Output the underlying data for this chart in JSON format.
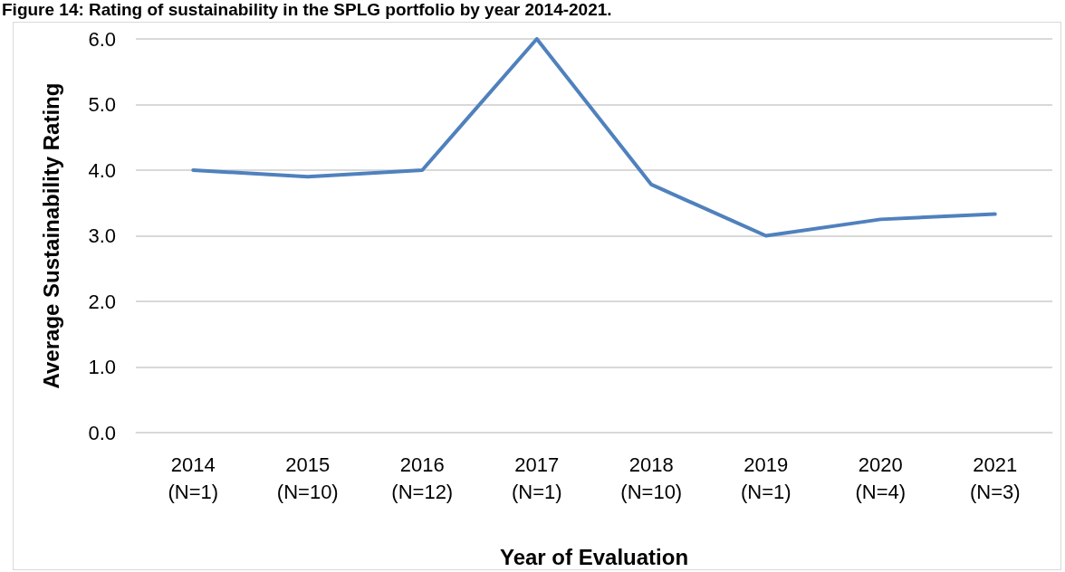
{
  "chart_data": {
    "type": "line",
    "title": "Figure 14: Rating of sustainability in the SPLG portfolio by year 2014-2021.",
    "xlabel": "Year of Evaluation",
    "ylabel": "Average Sustainability Rating",
    "categories": [
      "2014\n(N=1)",
      "2015\n(N=10)",
      "2016\n(N=12)",
      "2017\n(N=1)",
      "2018\n(N=10)",
      "2019\n(N=1)",
      "2020\n(N=4)",
      "2021\n(N=3)"
    ],
    "series": [
      {
        "color": "#4f81bd",
        "values": [
          4.0,
          3.9,
          4.0,
          6.0,
          3.78,
          3.0,
          3.25,
          3.33
        ]
      }
    ],
    "ylim": [
      0,
      6
    ],
    "yticks": [
      {
        "value": 0,
        "label": "0.0"
      },
      {
        "value": 1,
        "label": "1.0"
      },
      {
        "value": 2,
        "label": "2.0"
      },
      {
        "value": 3,
        "label": "3.0"
      },
      {
        "value": 4,
        "label": "4.0"
      },
      {
        "value": 5,
        "label": "5.0"
      },
      {
        "value": 6,
        "label": "6.0"
      }
    ],
    "grid": "y",
    "marker": "none",
    "line_style": "solid"
  }
}
